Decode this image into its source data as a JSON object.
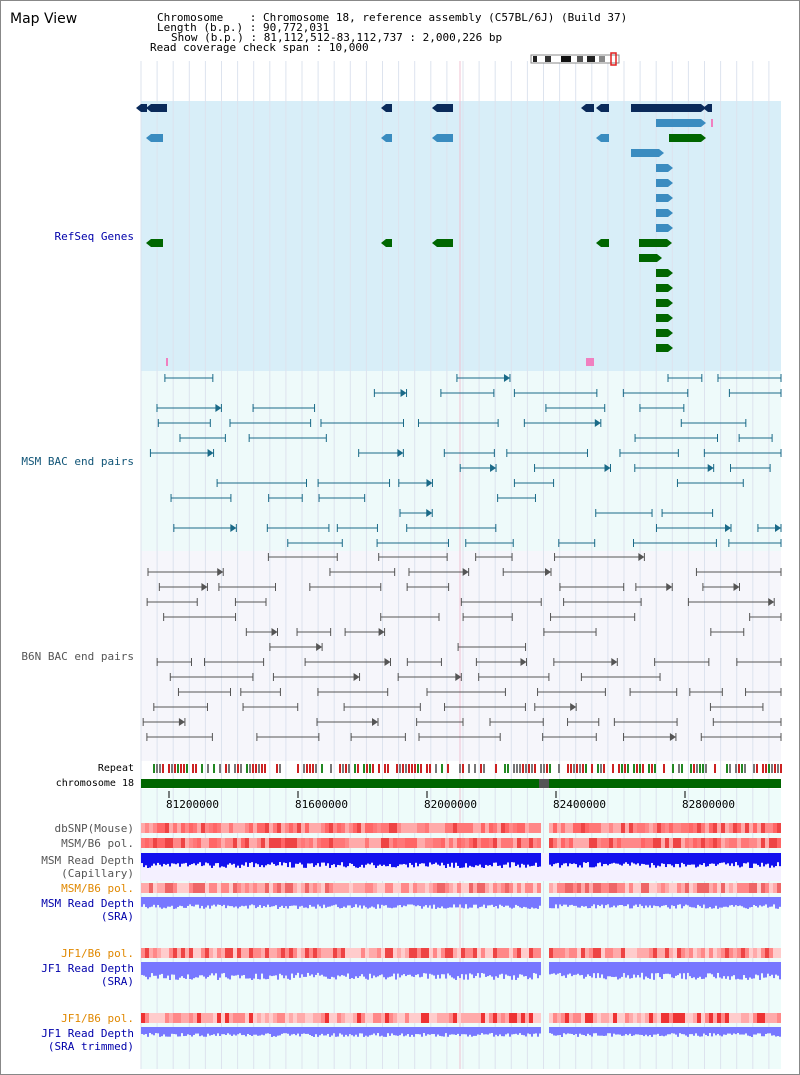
{
  "title": "Map View",
  "info": {
    "chromosome_label": "Chromosome",
    "chromosome_value": "Chromosome 18, reference assembly (C57BL/6J) (Build 37)",
    "length_label": "Length (b.p.)",
    "length_value": "90,772,031",
    "show_label": "Show (b.p.)",
    "show_value": "81,112,512-83,112,737 : 2,000,226 bp",
    "coverage_label": "Read coverage check span",
    "coverage_value": "10,000"
  },
  "tracks": {
    "refseq": "RefSeq Genes",
    "msm_bac": "MSM BAC end pairs",
    "b6n_bac": "B6N BAC end pairs",
    "repeat": "Repeat",
    "chromosome": "chromosome 18",
    "dbsnp": "dbSNP(Mouse)",
    "msm_b6_pol": "MSM/B6 pol.",
    "msm_read_depth_cap_1": "MSM Read Depth",
    "msm_read_depth_cap_2": "(Capillary)",
    "msm_b6_pol_2": "MSM/B6 pol.",
    "msm_read_depth_sra_1": "MSM Read Depth",
    "msm_read_depth_sra_2": "(SRA)",
    "jf1_b6_pol": "JF1/B6 pol.",
    "jf1_read_depth_sra_1": "JF1 Read Depth",
    "jf1_read_depth_sra_2": "(SRA)",
    "jf1_b6_pol_2": "JF1/B6 pol.",
    "jf1_read_depth_trim_1": "JF1 Read Depth",
    "jf1_read_depth_trim_2": "(SRA trimmed)"
  },
  "axis": {
    "ticks": [
      "81200000",
      "81600000",
      "82000000",
      "82400000",
      "82800000"
    ]
  },
  "colors": {
    "refseq_bg": "#d8eef8",
    "bac_bg": "#eefafa",
    "gene_dark": "#0a2a5a",
    "gene_mid": "#3a8cc0",
    "gene_green": "#006600",
    "msm_pair": "#1a6a88",
    "b6n_pair": "#555555",
    "depth_blue": "#1111ee",
    "depth_light": "#7777ff",
    "pol_red": "#ee3333"
  }
}
